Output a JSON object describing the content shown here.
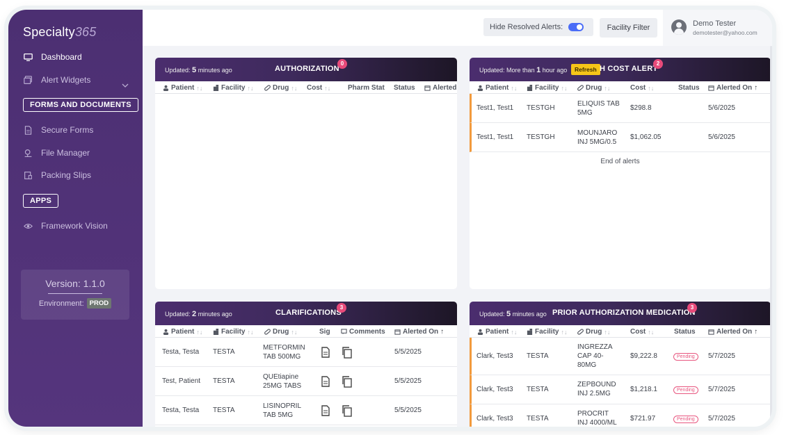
{
  "sidebar": {
    "logo_text": "Specialty",
    "logo_num": "365",
    "items": [
      {
        "label": "Dashboard",
        "icon": "monitor-icon"
      },
      {
        "label": "Alert Widgets",
        "icon": "widgets-icon"
      },
      {
        "label": "Secure Forms",
        "icon": "form-icon"
      },
      {
        "label": "File Manager",
        "icon": "file-manager-icon"
      },
      {
        "label": "Packing Slips",
        "icon": "packing-slip-icon"
      },
      {
        "label": "Framework Vision",
        "icon": "eye-icon"
      }
    ],
    "forms_section": "FORMS AND DOCUMENTS",
    "apps_section": "APPS",
    "version": "Version: 1.1.0",
    "env_label": "Environment:",
    "env_value": "PROD"
  },
  "topbar": {
    "hide_resolved": "Hide Resolved Alerts:",
    "facility_filter": "Facility Filter",
    "user_name": "Demo Tester",
    "user_email": "demotester@yahoo.com"
  },
  "panels": {
    "authorization": {
      "updated_prefix": "Updated:",
      "updated_num": "5",
      "updated_suffix": "minutes ago",
      "title": "AUTHORIZATION",
      "count": "0",
      "cols": [
        "Patient",
        "Facility",
        "Drug",
        "Cost",
        "Pharm Stat",
        "Status",
        "Alerted"
      ]
    },
    "high_cost": {
      "updated_prefix": "Updated:",
      "updated_mid": "More than",
      "updated_num": "1",
      "updated_suffix": "hour ago",
      "refresh": "Refresh",
      "title": "H COST ALERT",
      "count": "2",
      "cols": [
        "Patient",
        "Facility",
        "Drug",
        "Cost",
        "Status",
        "Alerted On"
      ],
      "rows": [
        {
          "patient": "Test1, Test1",
          "facility": "TESTGH",
          "drug": "ELIQUIS TAB 5MG",
          "cost": "$298.8",
          "alerted": "5/6/2025"
        },
        {
          "patient": "Test1, Test1",
          "facility": "TESTGH",
          "drug": "MOUNJARO INJ 5MG/0.5",
          "cost": "$1,062.05",
          "alerted": "5/6/2025"
        }
      ],
      "end_text": "End of alerts"
    },
    "clarifications": {
      "updated_prefix": "Updated:",
      "updated_num": "2",
      "updated_suffix": "minutes ago",
      "title": "CLARIFICATIONS",
      "count": "3",
      "cols": [
        "Patient",
        "Facility",
        "Drug",
        "Sig",
        "Comments",
        "Alerted On"
      ],
      "rows": [
        {
          "patient": "Testa, Testa",
          "facility": "TESTA",
          "drug": "METFORMIN TAB 500MG",
          "alerted": "5/5/2025"
        },
        {
          "patient": "Test, Patient",
          "facility": "TESTA",
          "drug": "QUEtiapine 25MG TABS",
          "alerted": "5/5/2025"
        },
        {
          "patient": "Testa, Testa",
          "facility": "TESTA",
          "drug": "LISINOPRIL TAB 5MG",
          "alerted": "5/5/2025"
        }
      ]
    },
    "prior_auth": {
      "updated_prefix": "Updated:",
      "updated_num": "5",
      "updated_suffix": "minutes ago",
      "title": "PRIOR AUTHORIZATION MEDICATION",
      "count": "3",
      "cols": [
        "Patient",
        "Facility",
        "Drug",
        "Cost",
        "Status",
        "Alerted On"
      ],
      "rows": [
        {
          "patient": "Clark, Test3",
          "facility": "TESTA",
          "drug": "INGREZZA CAP 40-80MG",
          "cost": "$9,222.8",
          "status": "Pending",
          "alerted": "5/7/2025"
        },
        {
          "patient": "Clark, Test3",
          "facility": "TESTA",
          "drug": "ZEPBOUND INJ 2.5MG",
          "cost": "$1,218.1",
          "status": "Pending",
          "alerted": "5/7/2025"
        },
        {
          "patient": "Clark, Test3",
          "facility": "TESTA",
          "drug": "PROCRIT INJ 4000/ML",
          "cost": "$721.97",
          "status": "Pending",
          "alerted": "5/7/2025"
        }
      ]
    }
  },
  "colors": {
    "sidebar": "#4c2f72",
    "accent": "#4a6cf7",
    "badge": "#e84a7a",
    "flag": "#f29a3c",
    "refresh": "#f5c518"
  }
}
